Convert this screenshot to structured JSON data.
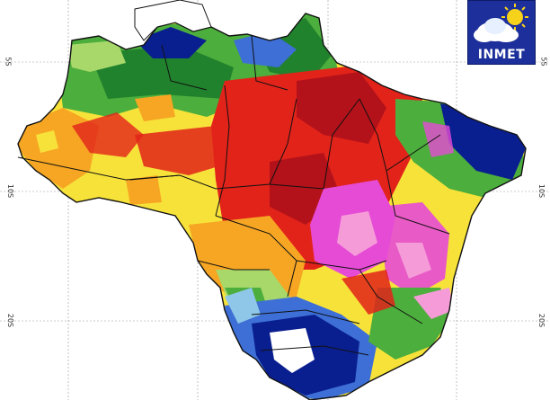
{
  "map": {
    "lat_labels": [
      "5S",
      "10S",
      "20S"
    ],
    "colors": {
      "white": "#ffffff",
      "dark_blue": "#0a1f8f",
      "blue": "#3d6fd6",
      "light_blue": "#8ec7e8",
      "dark_green": "#1a7a2a",
      "green": "#4cae3c",
      "light_green": "#a8d86a",
      "yellow": "#f7e23a",
      "orange": "#f6a623",
      "red": "#e2231a",
      "dark_red": "#b3121a",
      "magenta": "#e64bd6",
      "pink": "#f59bd8"
    }
  },
  "logo": {
    "text": "INMET",
    "icon": "sun-cloud-icon"
  }
}
